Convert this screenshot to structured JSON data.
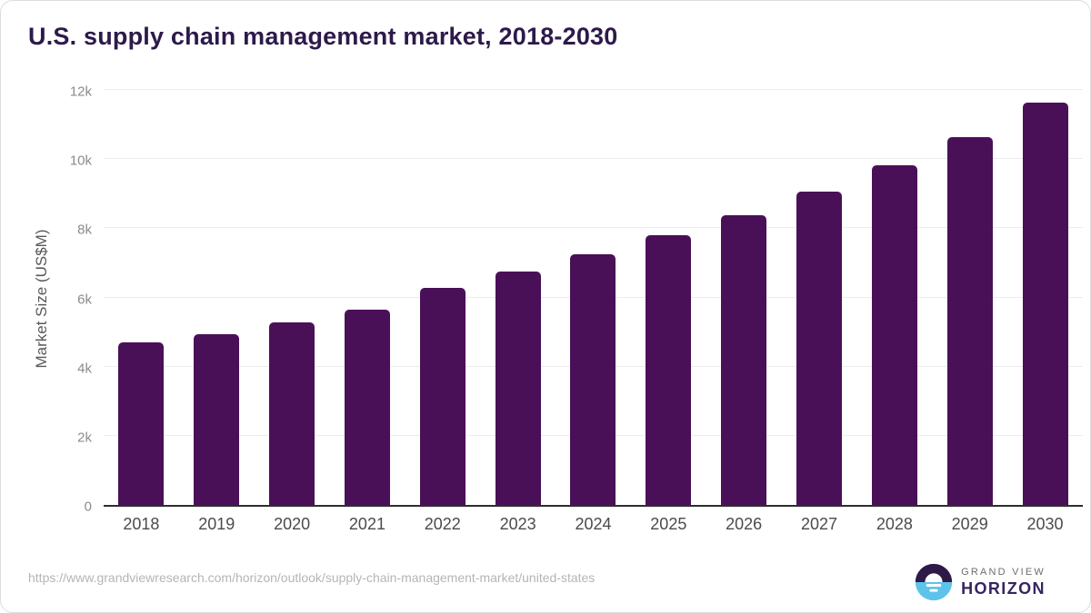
{
  "title": "U.S. supply chain management market, 2018-2030",
  "chart_data": {
    "type": "bar",
    "title": "U.S. supply chain management market, 2018-2030",
    "categories": [
      "2018",
      "2019",
      "2020",
      "2021",
      "2022",
      "2023",
      "2024",
      "2025",
      "2026",
      "2027",
      "2028",
      "2029",
      "2030"
    ],
    "values": [
      4720,
      4970,
      5300,
      5670,
      6300,
      6790,
      7270,
      7830,
      8420,
      9100,
      9870,
      10690,
      11690
    ],
    "xlabel": "",
    "ylabel": "Market Size (US$M)",
    "unit": "US$M",
    "ylim": [
      0,
      12000
    ],
    "y_ticks": [
      {
        "value": 0,
        "label": "0"
      },
      {
        "value": 2000,
        "label": "2k"
      },
      {
        "value": 4000,
        "label": "4k"
      },
      {
        "value": 6000,
        "label": "6k"
      },
      {
        "value": 8000,
        "label": "8k"
      },
      {
        "value": 10000,
        "label": "10k"
      },
      {
        "value": 12000,
        "label": "12k"
      }
    ],
    "grid": "horizontal",
    "legend": "none",
    "bar_color": "#4a1057"
  },
  "footer": {
    "source_url": "https://www.grandviewresearch.com/horizon/outlook/supply-chain-management-market/united-states",
    "logo": {
      "brand_top": "GRAND VIEW",
      "brand_bottom": "HORIZON"
    }
  },
  "colors": {
    "bar": "#4a1057",
    "title": "#2d1a4a",
    "grid": "#ececec",
    "axis_line": "#2e2e2e",
    "y_tick": "#8b8b8b",
    "x_tick": "#4b4b4b",
    "axis_title": "#595959",
    "url": "#b5b5b5",
    "logo_icon_dark": "#2e1a47",
    "logo_icon_blue": "#5ec3ea",
    "logo_gray": "#6e6e6e",
    "logo_purple": "#372462"
  }
}
